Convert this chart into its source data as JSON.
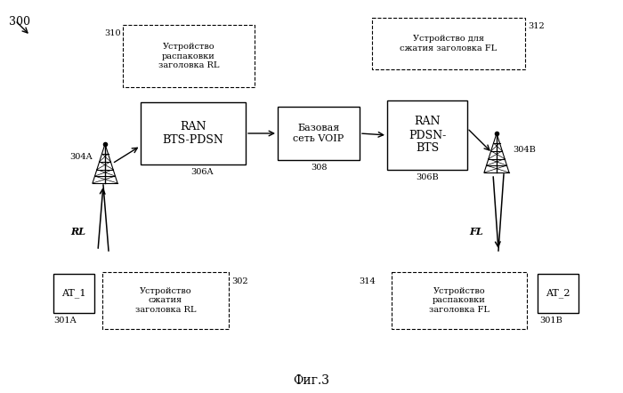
{
  "title": "Фиг.3",
  "label_300": "300",
  "label_310": "310",
  "label_312": "312",
  "label_308": "308",
  "label_306A": "306A",
  "label_306B": "306B",
  "label_304A": "304A",
  "label_304B": "304B",
  "label_302": "302",
  "label_314": "314",
  "label_301A": "301A",
  "label_301B": "301B",
  "label_RL": "RL",
  "label_FL": "FL",
  "box_310_text": "Устройство\nраспаковки\nзаголовка RL",
  "box_312_text": "Устройство для\nсжатия заголовка FL",
  "box_ran_a_text": "RAN\nBTS-PDSN",
  "box_voip_text": "Базовая\nсеть VOIP",
  "box_ran_b_text": "RAN\nPDSN-\nBTS",
  "box_302_text": "Устройство\nсжатия\nзаголовка RL",
  "box_314_text": "Устройство\nраспаковки\nзаголовка FL",
  "box_at1_text": "AT_1",
  "box_at2_text": "AT_2",
  "bg_color": "#ffffff",
  "line_color": "#000000",
  "text_color": "#000000",
  "font_size": 8,
  "font_size_small": 7
}
